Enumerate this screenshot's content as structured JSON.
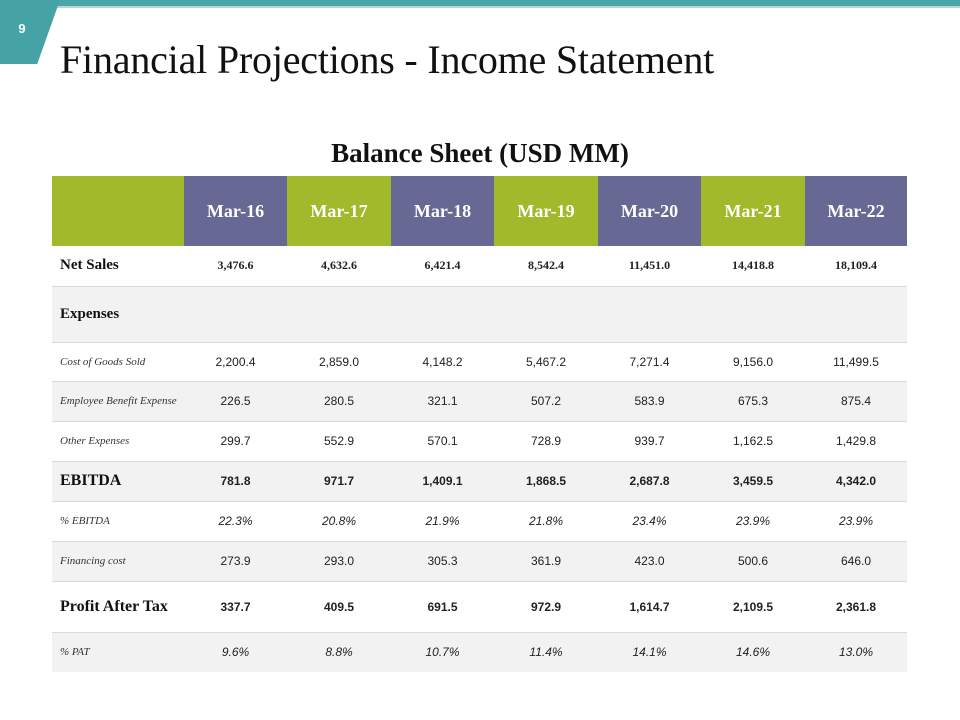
{
  "slide": {
    "page_number": "9",
    "title": "Financial Projections - Income Statement",
    "subtitle": "Balance Sheet (USD MM)"
  },
  "table": {
    "years": [
      "Mar-16",
      "Mar-17",
      "Mar-18",
      "Mar-19",
      "Mar-20",
      "Mar-21",
      "Mar-22"
    ],
    "header_colors": [
      "#676893",
      "#a2b92b",
      "#676893",
      "#a2b92b",
      "#676893",
      "#a2b92b",
      "#676893"
    ],
    "rows": {
      "net_sales": {
        "label": "Net Sales",
        "values": [
          "3,476.6",
          "4,632.6",
          "6,421.4",
          "8,542.4",
          "11,451.0",
          "14,418.8",
          "18,109.4"
        ]
      },
      "expenses": {
        "label": "Expenses"
      },
      "cogs": {
        "label": "Cost of Goods Sold",
        "values": [
          "2,200.4",
          "2,859.0",
          "4,148.2",
          "5,467.2",
          "7,271.4",
          "9,156.0",
          "11,499.5"
        ]
      },
      "employee_benefit": {
        "label": "Employee Benefit Expense",
        "values": [
          "226.5",
          "280.5",
          "321.1",
          "507.2",
          "583.9",
          "675.3",
          "875.4"
        ]
      },
      "other_expenses": {
        "label": "Other Expenses",
        "values": [
          "299.7",
          "552.9",
          "570.1",
          "728.9",
          "939.7",
          "1,162.5",
          "1,429.8"
        ]
      },
      "ebitda": {
        "label": "EBITDA",
        "values": [
          "781.8",
          "971.7",
          "1,409.1",
          "1,868.5",
          "2,687.8",
          "3,459.5",
          "4,342.0"
        ]
      },
      "pct_ebitda": {
        "label": "% EBITDA",
        "values": [
          "22.3%",
          "20.8%",
          "21.9%",
          "21.8%",
          "23.4%",
          "23.9%",
          "23.9%"
        ]
      },
      "financing_cost": {
        "label": "Financing cost",
        "values": [
          "273.9",
          "293.0",
          "305.3",
          "361.9",
          "423.0",
          "500.6",
          "646.0"
        ]
      },
      "pat": {
        "label": "Profit After Tax",
        "values": [
          "337.7",
          "409.5",
          "691.5",
          "972.9",
          "1,614.7",
          "2,109.5",
          "2,361.8"
        ]
      },
      "pct_pat": {
        "label": "% PAT",
        "values": [
          "9.6%",
          "8.8%",
          "10.7%",
          "11.4%",
          "14.1%",
          "14.6%",
          "13.0%"
        ]
      }
    }
  }
}
